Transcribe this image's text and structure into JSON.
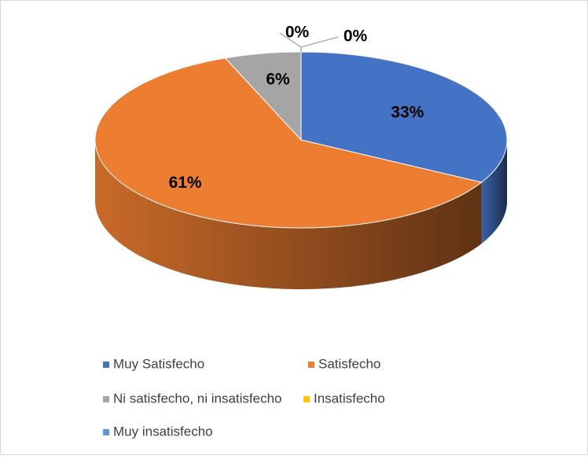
{
  "chart_data": {
    "type": "pie",
    "categories": [
      "Muy Satisfecho",
      "Satisfecho",
      "Ni satisfecho, ni insatisfecho",
      "Insatisfecho",
      "Muy insatisfecho"
    ],
    "values": [
      33,
      61,
      6,
      0,
      0
    ],
    "value_labels": [
      "33%",
      "61%",
      "6%",
      "0%",
      "0%"
    ],
    "colors": [
      "#4472c4",
      "#ed7d31",
      "#a5a5a5",
      "#ffc000",
      "#5b9bd5"
    ],
    "legend": "bottom"
  }
}
